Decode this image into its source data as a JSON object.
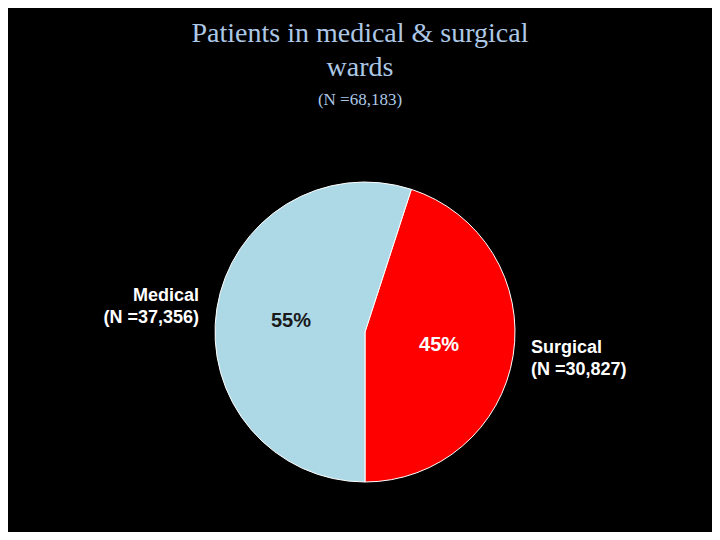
{
  "chart_data": {
    "type": "pie",
    "title": "Patients in medical & surgical\nwards",
    "subtitle": "(N =68,183)",
    "categories": [
      "Surgical\n(N =30,827)",
      "Medical\n(N =37,356)"
    ],
    "values": [
      45,
      55
    ],
    "value_labels": [
      "45%",
      "55%"
    ],
    "colors": [
      "#ff0000",
      "#add8e6"
    ],
    "data_labels": true
  }
}
